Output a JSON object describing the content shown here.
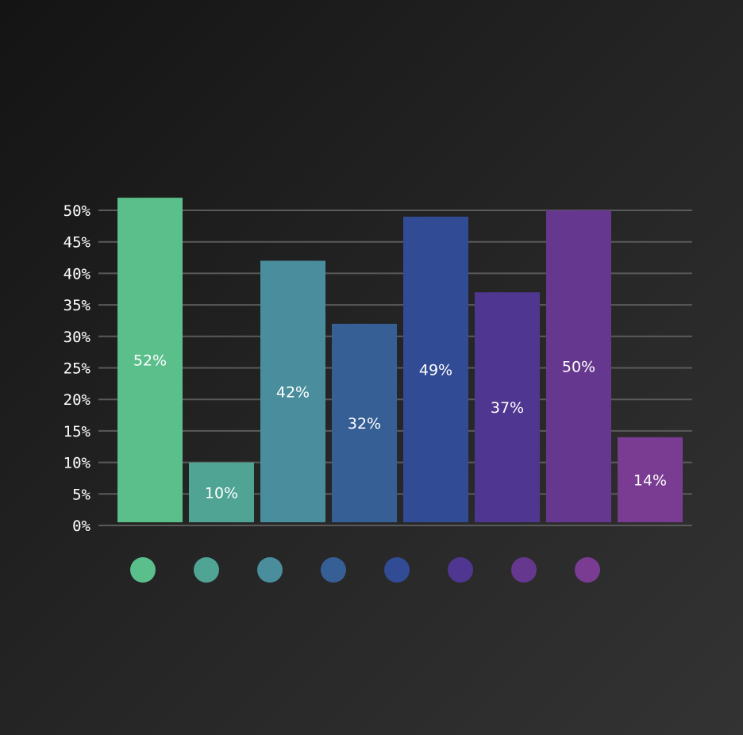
{
  "chart_data": {
    "type": "bar",
    "title": "",
    "xlabel": "",
    "ylabel": "",
    "ylim": [
      0,
      50
    ],
    "yticks": [
      "0%",
      "5%",
      "10%",
      "15%",
      "20%",
      "25%",
      "30%",
      "35%",
      "40%",
      "45%",
      "50%"
    ],
    "grid": true,
    "legend_placement": "bottom",
    "categories": [
      "",
      "",
      "",
      "",
      "",
      "",
      "",
      ""
    ],
    "values": [
      52,
      10,
      42,
      32,
      49,
      37,
      50,
      14
    ],
    "value_labels": [
      "52%",
      "10%",
      "42%",
      "32%",
      "49%",
      "37%",
      "50%",
      "14%"
    ],
    "colors": [
      "#5bbf8c",
      "#4fa494",
      "#4a8e9e",
      "#365f96",
      "#314b95",
      "#4f3690",
      "#66378e",
      "#7a3c92"
    ]
  },
  "legend": {
    "items": [
      {
        "label": "",
        "color": "#5bbf8c"
      },
      {
        "label": "",
        "color": "#4fa494"
      },
      {
        "label": "",
        "color": "#4a8e9e"
      },
      {
        "label": "",
        "color": "#365f96"
      },
      {
        "label": "",
        "color": "#314b95"
      },
      {
        "label": "",
        "color": "#4f3690"
      },
      {
        "label": "",
        "color": "#66378e"
      },
      {
        "label": "",
        "color": "#7a3c92"
      }
    ]
  }
}
